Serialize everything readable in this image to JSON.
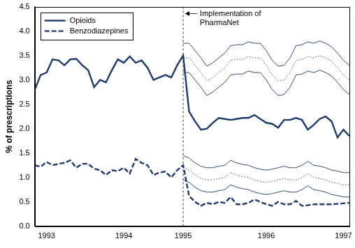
{
  "chart_data": {
    "type": "line",
    "y_label": "% of prescriptions",
    "categories": [
      null,
      null,
      "1993",
      null,
      null,
      null,
      null,
      null,
      null,
      null,
      null,
      null,
      null,
      null,
      null,
      "1994",
      null,
      null,
      null,
      null,
      null,
      null,
      null,
      null,
      null,
      "1995",
      null,
      null,
      null,
      null,
      null,
      null,
      null,
      null,
      null,
      null,
      null,
      null,
      null,
      "1996",
      null,
      null,
      null,
      null,
      null,
      null,
      null,
      null,
      null,
      null,
      null,
      null,
      "1997",
      null
    ],
    "series": [
      {
        "color": "#1b3a6e",
        "line_style": "solid",
        "marker": "none",
        "values": [
          null,
          null,
          null,
          null,
          null,
          null,
          null,
          null,
          null,
          null,
          null,
          null,
          null,
          null,
          null,
          null,
          null,
          null,
          null,
          null,
          null,
          null,
          null,
          null,
          null,
          3.75,
          3.75,
          3.6,
          3.45,
          3.28,
          3.35,
          3.45,
          3.55,
          3.7,
          3.72,
          3.72,
          3.78,
          3.75,
          3.75,
          3.6,
          3.4,
          3.28,
          3.3,
          3.45,
          3.7,
          3.72,
          3.78,
          3.75,
          3.8,
          3.75,
          3.68,
          3.55,
          3.4,
          3.3
        ]
      },
      {
        "color": "#1b3a6e",
        "line_style": "dotted",
        "marker": "none",
        "values": [
          null,
          null,
          null,
          null,
          null,
          null,
          null,
          null,
          null,
          null,
          null,
          null,
          null,
          null,
          null,
          null,
          null,
          null,
          null,
          null,
          null,
          null,
          null,
          null,
          null,
          3.45,
          3.45,
          3.3,
          3.15,
          2.98,
          3.05,
          3.15,
          3.25,
          3.4,
          3.42,
          3.42,
          3.48,
          3.45,
          3.45,
          3.3,
          3.1,
          2.98,
          3.0,
          3.15,
          3.4,
          3.42,
          3.48,
          3.45,
          3.5,
          3.45,
          3.38,
          3.25,
          3.1,
          3.0
        ]
      },
      {
        "color": "#1b3a6e",
        "line_style": "solid",
        "marker": "none",
        "values": [
          null,
          null,
          null,
          null,
          null,
          null,
          null,
          null,
          null,
          null,
          null,
          null,
          null,
          null,
          null,
          null,
          null,
          null,
          null,
          null,
          null,
          null,
          null,
          null,
          null,
          3.15,
          3.15,
          3.0,
          2.85,
          2.68,
          2.75,
          2.85,
          2.95,
          3.1,
          3.12,
          3.12,
          3.18,
          3.15,
          3.15,
          3.0,
          2.8,
          2.68,
          2.7,
          2.85,
          3.1,
          3.12,
          3.18,
          3.15,
          3.2,
          3.15,
          3.08,
          2.95,
          2.8,
          2.7
        ]
      },
      {
        "color": "#1b3a6e",
        "line_style": "solid",
        "marker": "none",
        "values": [
          null,
          null,
          null,
          null,
          null,
          null,
          null,
          null,
          null,
          null,
          null,
          null,
          null,
          null,
          null,
          null,
          null,
          null,
          null,
          null,
          null,
          null,
          null,
          null,
          null,
          1.45,
          1.4,
          1.3,
          1.23,
          1.2,
          1.2,
          1.23,
          1.25,
          1.35,
          1.3,
          1.27,
          1.25,
          1.2,
          1.17,
          1.15,
          1.17,
          1.2,
          1.23,
          1.2,
          1.2,
          1.25,
          1.33,
          1.25,
          1.23,
          1.2,
          1.15,
          1.13,
          1.1,
          1.1
        ]
      },
      {
        "color": "#1b3a6e",
        "line_style": "dotted",
        "marker": "none",
        "values": [
          null,
          null,
          null,
          null,
          null,
          null,
          null,
          null,
          null,
          null,
          null,
          null,
          null,
          null,
          null,
          null,
          null,
          null,
          null,
          null,
          null,
          null,
          null,
          null,
          null,
          1.2,
          1.15,
          1.05,
          0.98,
          0.95,
          0.95,
          0.98,
          1.0,
          1.1,
          1.05,
          1.02,
          1.0,
          0.95,
          0.92,
          0.9,
          0.92,
          0.95,
          0.98,
          0.95,
          0.95,
          1.0,
          1.08,
          1.0,
          0.98,
          0.95,
          0.9,
          0.88,
          0.85,
          0.85
        ]
      },
      {
        "color": "#1b3a6e",
        "line_style": "solid",
        "marker": "none",
        "values": [
          null,
          null,
          null,
          null,
          null,
          null,
          null,
          null,
          null,
          null,
          null,
          null,
          null,
          null,
          null,
          null,
          null,
          null,
          null,
          null,
          null,
          null,
          null,
          null,
          null,
          0.95,
          0.9,
          0.8,
          0.73,
          0.7,
          0.7,
          0.73,
          0.75,
          0.85,
          0.8,
          0.77,
          0.75,
          0.7,
          0.67,
          0.65,
          0.67,
          0.7,
          0.73,
          0.7,
          0.7,
          0.75,
          0.83,
          0.75,
          0.73,
          0.7,
          0.65,
          0.63,
          0.6,
          0.6
        ]
      },
      {
        "name": "Opioids",
        "color": "#1b3a6e",
        "line_style": "solid",
        "marker": "none",
        "values": [
          2.8,
          3.1,
          3.15,
          3.42,
          3.4,
          3.3,
          3.42,
          3.43,
          3.3,
          3.2,
          2.85,
          3.0,
          2.95,
          3.2,
          3.42,
          3.35,
          3.48,
          3.35,
          3.4,
          3.25,
          3.0,
          3.05,
          3.1,
          3.05,
          3.3,
          3.5,
          2.35,
          2.15,
          1.98,
          2.0,
          2.12,
          2.22,
          2.2,
          2.18,
          2.2,
          2.22,
          2.22,
          2.28,
          2.2,
          2.12,
          2.1,
          2.02,
          2.18,
          2.18,
          2.22,
          2.18,
          1.98,
          2.08,
          2.2,
          2.25,
          2.15,
          1.82,
          1.98,
          1.85
        ]
      },
      {
        "name": "Benzodiazepines",
        "color": "#1b3a6e",
        "line_style": "dashed",
        "marker": "none",
        "values": [
          1.25,
          1.22,
          1.32,
          1.25,
          1.28,
          1.3,
          1.35,
          1.2,
          1.28,
          1.28,
          1.18,
          1.15,
          1.05,
          1.15,
          1.13,
          1.2,
          1.08,
          1.38,
          1.3,
          1.25,
          1.05,
          1.1,
          1.12,
          1.0,
          1.15,
          1.25,
          0.62,
          0.5,
          0.42,
          0.48,
          0.45,
          0.5,
          0.48,
          0.6,
          0.45,
          0.45,
          0.48,
          0.55,
          0.5,
          0.45,
          0.42,
          0.5,
          0.45,
          0.45,
          0.52,
          0.42,
          0.43,
          0.45,
          0.45,
          0.45,
          0.45,
          0.46,
          0.47,
          0.48
        ]
      }
    ],
    "ylim": [
      0,
      4.5
    ],
    "yticks": [
      {
        "value": 0,
        "label": "0.0"
      },
      0.5,
      {
        "value": 1,
        "label": "1.0"
      },
      1.5,
      {
        "value": 2,
        "label": "2.0"
      },
      2.5,
      {
        "value": 3,
        "label": "3.0"
      },
      3.5,
      {
        "value": 4,
        "label": "4.0"
      },
      4.5
    ],
    "grid": false,
    "legend": "upper left",
    "annotations": [
      {
        "text": [
          "Implementation of",
          "PharmaNet"
        ],
        "x": "1995"
      }
    ]
  }
}
